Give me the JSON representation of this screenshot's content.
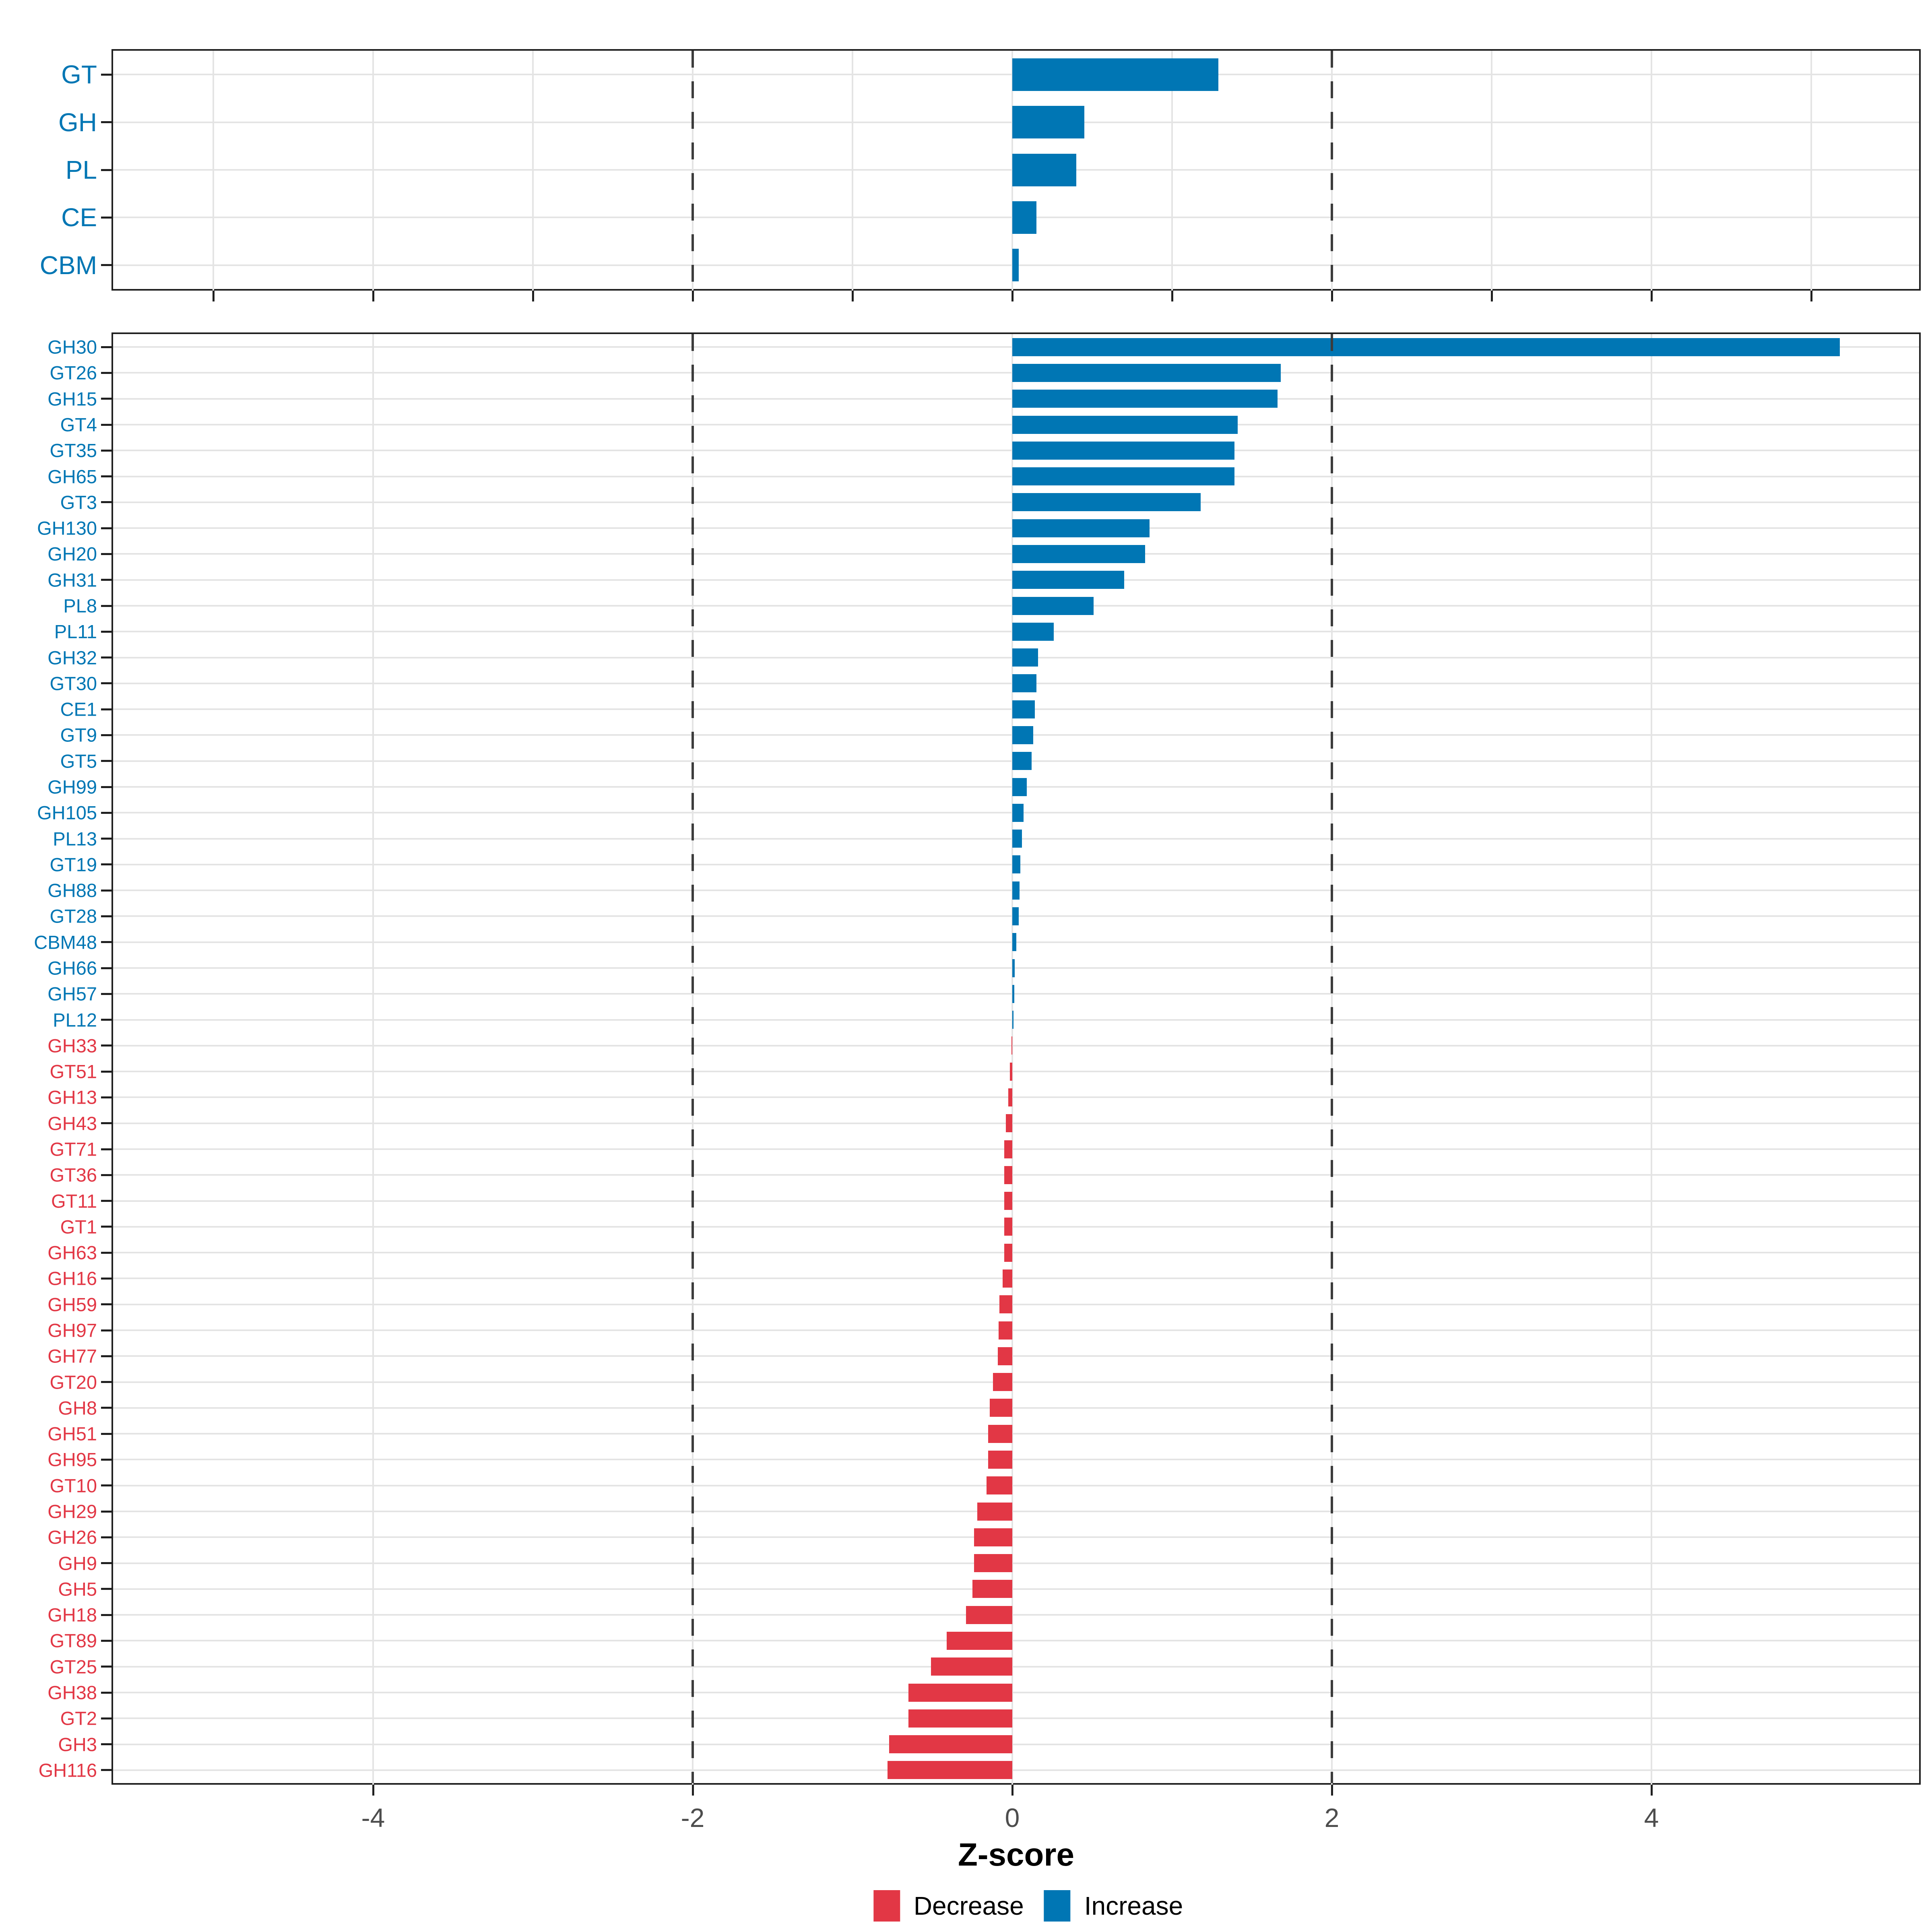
{
  "x_axis": {
    "label": "Z-score",
    "tick_values": [
      -4,
      -2,
      0,
      2,
      4
    ],
    "tick_labels": [
      "-4",
      "-2",
      "0",
      "2",
      "4"
    ],
    "range": [
      -5.65,
      5.68
    ]
  },
  "legend": {
    "items": [
      {
        "label": "Decrease",
        "color": "#E23745"
      },
      {
        "label": "Increase",
        "color": "#0076B4"
      }
    ]
  },
  "colors": {
    "increase": "#0076B4",
    "decrease": "#E23745",
    "label_increase": "#0076B4",
    "label_decrease": "#E23745",
    "grid": "#E4E4E4",
    "dashed_line": "#3C3C3C",
    "axis_text": "#4D4D4D",
    "border": "#1F1F1F"
  },
  "chart_data": [
    {
      "type": "bar",
      "orientation": "horizontal",
      "panel": "cazyme-classes",
      "title": "",
      "xlabel": "Z-score",
      "xlim": [
        -5.65,
        5.68
      ],
      "gridlines_x": [
        -5,
        -4,
        -3,
        -2,
        -1,
        0,
        1,
        2,
        3,
        4,
        5
      ],
      "tick_marks_x": [
        -5,
        -4,
        -3,
        -2,
        -1,
        0,
        1,
        2,
        3,
        4,
        5
      ],
      "dashed_x": [
        -2,
        2
      ],
      "categories": [
        "GT",
        "GH",
        "PL",
        "CE",
        "CBM"
      ],
      "values": [
        1.29,
        0.45,
        0.4,
        0.15,
        0.04
      ]
    },
    {
      "type": "bar",
      "orientation": "horizontal",
      "panel": "cazyme-families",
      "title": "",
      "xlabel": "Z-score",
      "xlim": [
        -5.65,
        5.68
      ],
      "gridlines_x": [
        -4,
        -2,
        0,
        2,
        4
      ],
      "tick_marks_x": [
        -4,
        -2,
        0,
        2,
        4
      ],
      "dashed_x": [
        -2,
        2
      ],
      "categories": [
        "GH30",
        "GT26",
        "GH15",
        "GT4",
        "GT35",
        "GH65",
        "GT3",
        "GH130",
        "GH20",
        "GH31",
        "PL8",
        "PL11",
        "GH32",
        "GT30",
        "CE1",
        "GT9",
        "GT5",
        "GH99",
        "GH105",
        "PL13",
        "GT19",
        "GH88",
        "GT28",
        "CBM48",
        "GH66",
        "GH57",
        "PL12",
        "GH33",
        "GT51",
        "GH13",
        "GH43",
        "GT71",
        "GT36",
        "GT11",
        "GT1",
        "GH63",
        "GH16",
        "GH59",
        "GH97",
        "GH77",
        "GT20",
        "GH8",
        "GH51",
        "GH95",
        "GT10",
        "GH29",
        "GH26",
        "GH9",
        "GH5",
        "GH18",
        "GT89",
        "GT25",
        "GH38",
        "GT2",
        "GH3",
        "GH116"
      ],
      "values": [
        5.18,
        1.68,
        1.66,
        1.41,
        1.39,
        1.39,
        1.18,
        0.86,
        0.83,
        0.7,
        0.51,
        0.26,
        0.16,
        0.15,
        0.14,
        0.13,
        0.12,
        0.09,
        0.07,
        0.06,
        0.05,
        0.045,
        0.04,
        0.025,
        0.015,
        0.012,
        0.008,
        -0.005,
        -0.015,
        -0.025,
        -0.04,
        -0.05,
        -0.05,
        -0.05,
        -0.05,
        -0.05,
        -0.06,
        -0.08,
        -0.085,
        -0.09,
        -0.12,
        -0.14,
        -0.15,
        -0.15,
        -0.16,
        -0.22,
        -0.24,
        -0.24,
        -0.25,
        -0.29,
        -0.41,
        -0.51,
        -0.65,
        -0.65,
        -0.77,
        -0.78
      ]
    }
  ]
}
